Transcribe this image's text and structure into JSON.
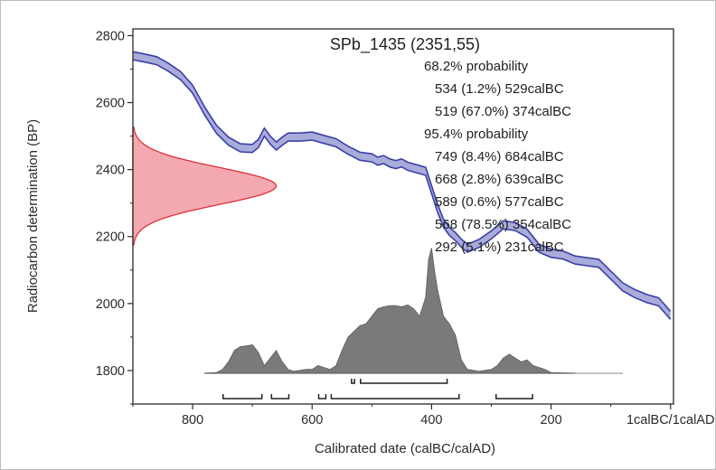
{
  "chart_data": {
    "type": "area",
    "title": "SPb_1435 (2351,55)",
    "xlabel": "Calibrated date (calBC/calAD)",
    "ylabel": "Radiocarbon determination (BP)",
    "x_axis_direction": "decreasing calBC left to right",
    "xlim": [
      900,
      -5
    ],
    "ylim": [
      1700,
      2820
    ],
    "x_ticks": [
      800,
      600,
      400,
      200,
      0
    ],
    "x_tick_labels": [
      "800",
      "600",
      "400",
      "200",
      "1calBC/1calAD"
    ],
    "y_ticks": [
      1800,
      2000,
      2200,
      2400,
      2600,
      2800
    ],
    "y_tick_labels": [
      "1800",
      "2000",
      "2200",
      "2400",
      "2600",
      "2800"
    ],
    "grid": false,
    "colors": {
      "curve": "#3b3fa8",
      "curve_band": "#a9acd9",
      "radiocarbon": "#e0303a",
      "radiocarbon_fill": "#f4a9b0",
      "posterior": "#7a7a7a",
      "baseline": "#b0b0b0",
      "range_bars": "#222222"
    },
    "calibration_curve": {
      "x": [
        900,
        880,
        860,
        840,
        820,
        800,
        780,
        760,
        740,
        720,
        700,
        690,
        680,
        670,
        660,
        650,
        640,
        620,
        600,
        580,
        560,
        540,
        520,
        500,
        490,
        480,
        470,
        460,
        450,
        440,
        420,
        410,
        400,
        390,
        380,
        370,
        360,
        350,
        340,
        320,
        300,
        280,
        260,
        240,
        220,
        200,
        180,
        160,
        140,
        120,
        100,
        80,
        60,
        40,
        20,
        0
      ],
      "y": [
        2740,
        2733,
        2725,
        2705,
        2680,
        2640,
        2575,
        2520,
        2485,
        2465,
        2463,
        2478,
        2512,
        2488,
        2470,
        2485,
        2497,
        2497,
        2500,
        2490,
        2480,
        2458,
        2440,
        2435,
        2425,
        2430,
        2420,
        2415,
        2420,
        2410,
        2400,
        2395,
        2340,
        2285,
        2240,
        2215,
        2200,
        2180,
        2165,
        2180,
        2205,
        2235,
        2230,
        2210,
        2165,
        2150,
        2145,
        2130,
        2125,
        2120,
        2085,
        2050,
        2030,
        2015,
        2005,
        1965
      ],
      "band_halfwidth": 12
    },
    "radiocarbon_distribution": {
      "mean": 2351,
      "sigma": 55,
      "max_width_years": 240
    },
    "posterior_distribution": {
      "x": [
        780,
        760,
        750,
        740,
        730,
        720,
        710,
        700,
        690,
        680,
        670,
        660,
        650,
        640,
        630,
        620,
        610,
        600,
        590,
        580,
        570,
        560,
        550,
        540,
        530,
        520,
        510,
        500,
        490,
        480,
        470,
        460,
        450,
        440,
        430,
        420,
        410,
        405,
        400,
        395,
        390,
        380,
        370,
        360,
        350,
        340,
        320,
        300,
        290,
        280,
        270,
        260,
        250,
        240,
        230,
        220,
        210,
        200,
        160
      ],
      "y": [
        0,
        2,
        10,
        30,
        60,
        70,
        72,
        75,
        55,
        20,
        40,
        60,
        30,
        10,
        5,
        8,
        10,
        10,
        20,
        15,
        10,
        20,
        60,
        95,
        110,
        125,
        130,
        150,
        170,
        175,
        178,
        178,
        175,
        180,
        170,
        150,
        200,
        300,
        330,
        270,
        220,
        150,
        130,
        100,
        35,
        10,
        5,
        10,
        20,
        40,
        50,
        40,
        30,
        35,
        20,
        15,
        10,
        2,
        0
      ],
      "baseline_from": 780,
      "baseline_to": 80
    },
    "ranges_68": [
      [
        534,
        529
      ],
      [
        519,
        374
      ]
    ],
    "ranges_95": [
      [
        749,
        684
      ],
      [
        668,
        639
      ],
      [
        589,
        577
      ],
      [
        568,
        354
      ],
      [
        292,
        231
      ]
    ],
    "annotations": [
      "68.2% probability",
      "534 (1.2%) 529calBC",
      "519 (67.0%) 374calBC",
      "95.4% probability",
      "749 (8.4%) 684calBC",
      "668 (2.8%) 639calBC",
      "589 (0.6%) 577calBC",
      "568 (78.5%) 354calBC",
      "292 (5.1%) 231calBC"
    ]
  }
}
